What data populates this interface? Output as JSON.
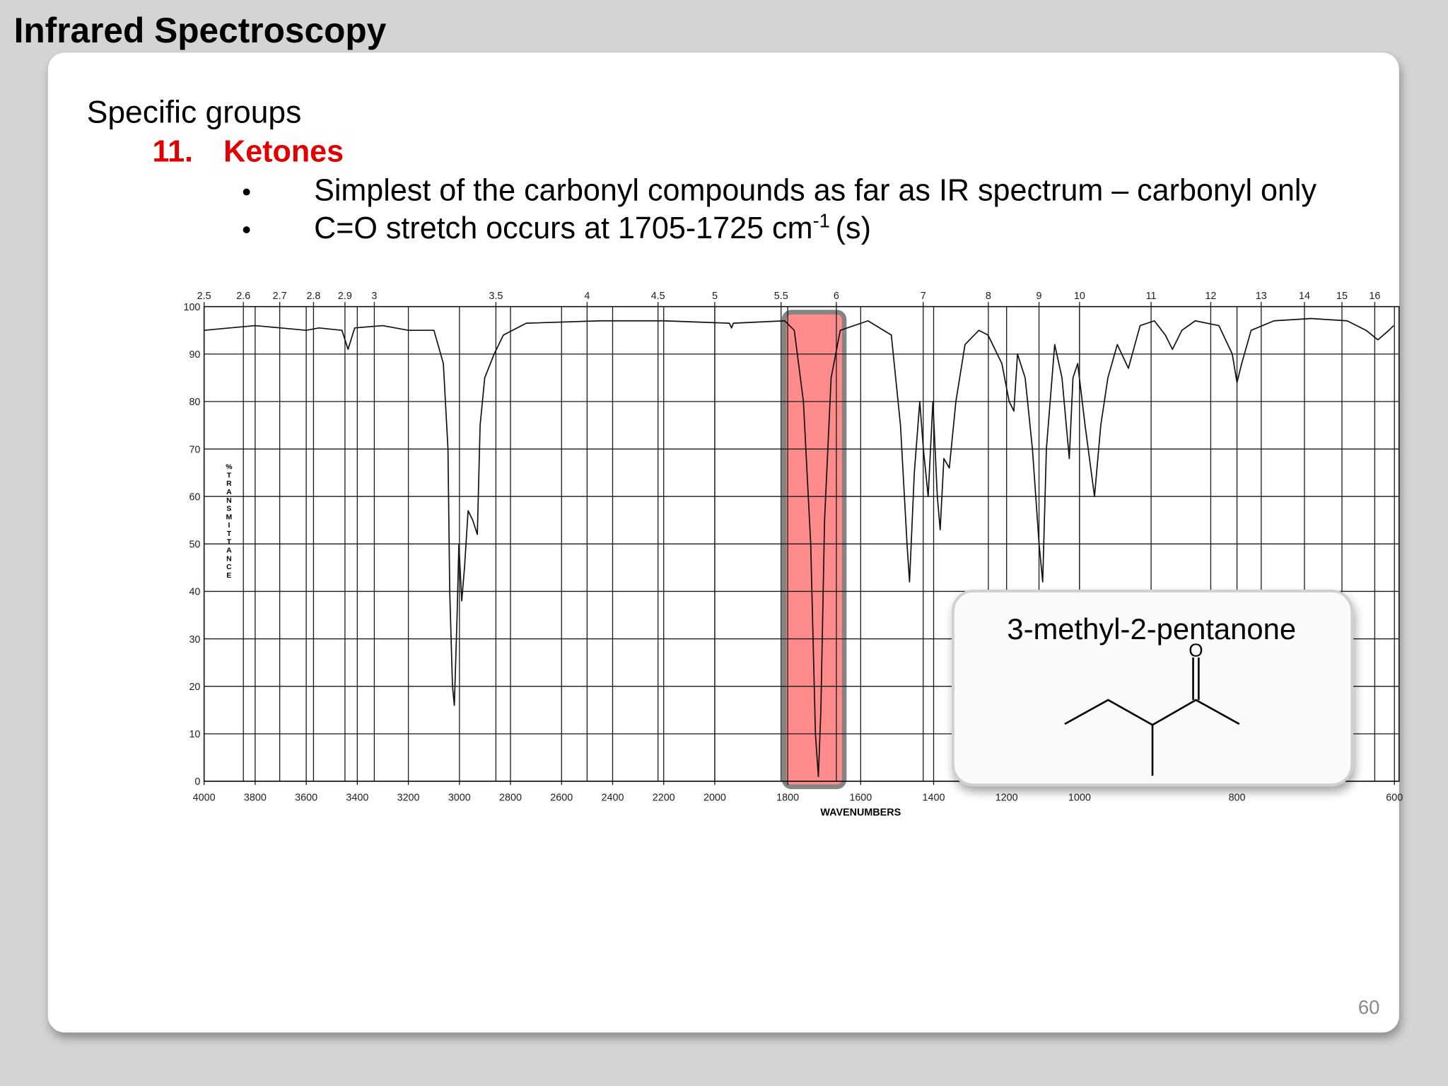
{
  "title": "Infrared Spectroscopy",
  "heading": "Specific groups",
  "item_number": "11.",
  "item_title": "Ketones",
  "bullets": [
    [
      "Simplest of the carbonyl compounds as far as IR spectrum – carbonyl only"
    ],
    [
      "C=O stretch occurs at 1705-1725 cm",
      "-1",
      "(s)"
    ]
  ],
  "compound": {
    "name": "3-methyl-2-pentanone",
    "atom": "O"
  },
  "page_number": "60",
  "chart_data": {
    "type": "line",
    "xlabel": "WAVENUMBERS",
    "ylabel": "%TRANSMITTANCE",
    "color": "#111111",
    "x": [
      4000,
      3900,
      3800,
      3700,
      3600,
      3550,
      3460,
      3436,
      3410,
      3300,
      3200,
      3100,
      3063,
      3045,
      3038,
      3027,
      3020,
      3009,
      3002,
      2991,
      2980,
      2966,
      2948,
      2930,
      2919,
      2901,
      2864,
      2828,
      2738,
      2448,
      2200,
      1960,
      1954,
      1949,
      1808,
      1782,
      1757,
      1737,
      1724,
      1716,
      1709,
      1699,
      1681,
      1656,
      1580,
      1516,
      1491,
      1473,
      1466,
      1453,
      1438,
      1428,
      1415,
      1402,
      1390,
      1382,
      1372,
      1357,
      1339,
      1314,
      1276,
      1251,
      1213,
      1193,
      1180,
      1170,
      1149,
      1129,
      1111,
      1101,
      1091,
      1068,
      1048,
      1028,
      1018,
      1005,
      993,
      981,
      973,
      964,
      952,
      938,
      923,
      905,
      891,
      882,
      870,
      853,
      823,
      806,
      800,
      794,
      782,
      753,
      706,
      660,
      636,
      621,
      607,
      601
    ],
    "values": [
      95,
      95.5,
      96,
      95.5,
      95,
      95.5,
      95,
      91,
      95.5,
      96,
      95,
      95,
      88,
      70,
      40,
      20,
      16,
      35,
      50,
      38,
      45,
      57,
      55,
      52,
      75,
      85,
      90,
      94,
      96.5,
      97,
      97,
      96.5,
      95.5,
      96.5,
      97,
      95,
      80,
      50,
      10,
      1,
      15,
      55,
      85,
      95,
      97,
      94,
      75,
      50,
      42,
      65,
      80,
      70,
      60,
      80,
      60,
      53,
      68,
      66,
      80,
      92,
      95,
      94,
      88,
      80,
      78,
      90,
      85,
      70,
      50,
      42,
      70,
      92,
      85,
      68,
      85,
      88,
      75,
      60,
      75,
      85,
      92,
      87,
      96,
      97,
      94,
      91,
      95,
      97,
      96,
      90,
      84,
      88,
      95,
      97,
      97.5,
      97,
      95,
      93,
      95,
      96
    ],
    "xlim": [
      4000,
      600
    ],
    "xscale_breaks": [
      2000,
      1000
    ],
    "xticks": [
      4000,
      3800,
      3600,
      3400,
      3200,
      3000,
      2800,
      2600,
      2400,
      2200,
      2000,
      1800,
      1600,
      1400,
      1200,
      1000,
      800,
      600
    ],
    "x2ticks": [
      2.5,
      2.6,
      2.7,
      2.8,
      2.9,
      3,
      3.5,
      4,
      4.5,
      5,
      5.5,
      6,
      7,
      8,
      9,
      10,
      11,
      12,
      13,
      14,
      15,
      16
    ],
    "ylim": [
      0,
      100
    ],
    "yticks": [
      0,
      10,
      20,
      30,
      40,
      50,
      60,
      70,
      80,
      90,
      100
    ],
    "grid": true,
    "highlight": {
      "x": [
        1810,
        1645
      ],
      "color": "#ff7f7f"
    }
  }
}
